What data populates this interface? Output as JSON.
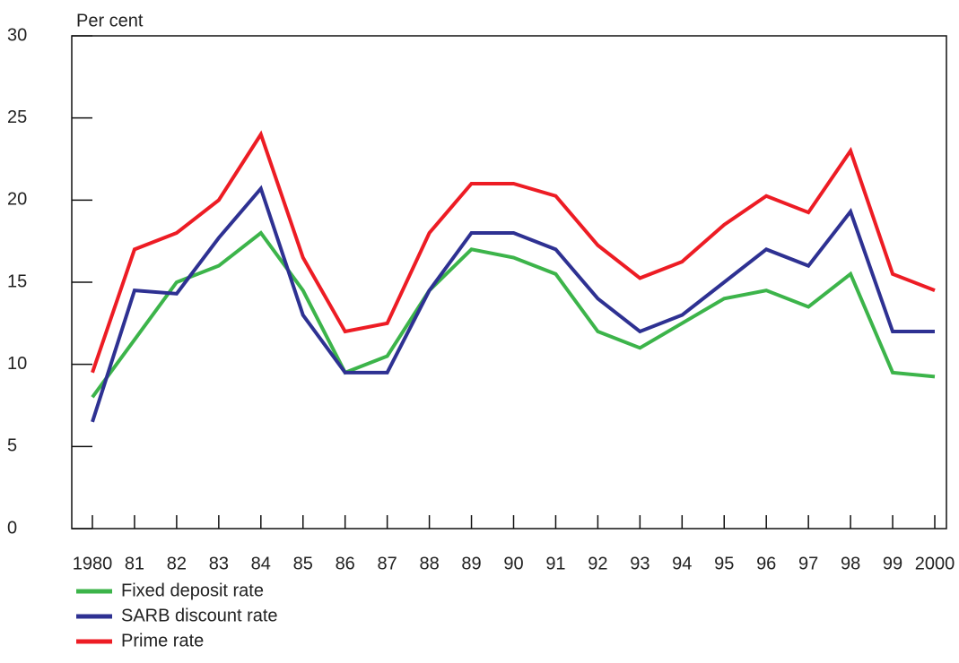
{
  "chart_data": {
    "type": "line",
    "y_label": "Per cent",
    "categories": [
      "1980",
      "81",
      "82",
      "83",
      "84",
      "85",
      "86",
      "87",
      "88",
      "89",
      "90",
      "91",
      "92",
      "93",
      "94",
      "95",
      "96",
      "97",
      "98",
      "99",
      "2000"
    ],
    "series": [
      {
        "name": "Fixed deposit rate",
        "color": "#3cb44a",
        "values": [
          8,
          11.5,
          15,
          16,
          18,
          14.5,
          9.5,
          10.5,
          14.5,
          17,
          16.5,
          15.5,
          12,
          11,
          12.5,
          14,
          14.5,
          13.5,
          15.5,
          9.5,
          9.25
        ]
      },
      {
        "name": "SARB discount rate",
        "color": "#2e3192",
        "values": [
          6.5,
          14.5,
          14.3,
          17.7,
          20.7,
          13,
          9.5,
          9.5,
          14.5,
          18,
          18,
          17,
          14,
          12,
          13,
          15,
          17,
          16,
          19.3,
          12,
          12
        ]
      },
      {
        "name": "Prime rate",
        "color": "#ed1c24",
        "values": [
          9.5,
          17,
          18,
          20,
          24,
          16.5,
          12,
          12.5,
          18,
          21,
          21,
          20.25,
          17.25,
          15.25,
          16.25,
          18.5,
          20.25,
          19.25,
          23,
          15.5,
          14.5
        ]
      }
    ],
    "ylim": [
      0,
      30
    ],
    "yticks": [
      0,
      5,
      10,
      15,
      20,
      25,
      30
    ],
    "legend": "bottom"
  }
}
